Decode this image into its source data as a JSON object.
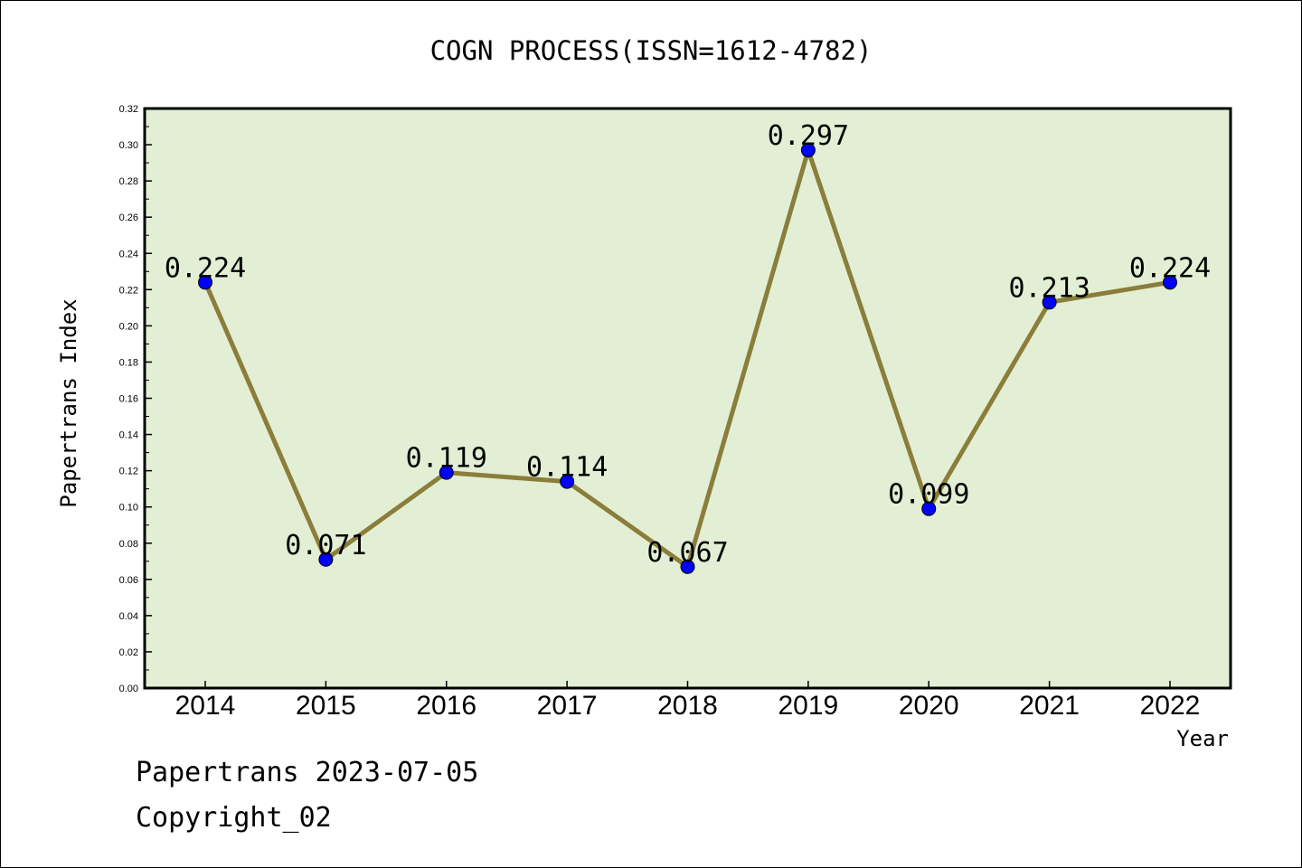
{
  "chart_data": {
    "type": "line",
    "title": "COGN PROCESS(ISSN=1612-4782)",
    "xlabel": "Year",
    "ylabel": "Papertrans Index",
    "categories": [
      "2014",
      "2015",
      "2016",
      "2017",
      "2018",
      "2019",
      "2020",
      "2021",
      "2022"
    ],
    "values": [
      0.224,
      0.071,
      0.119,
      0.114,
      0.067,
      0.297,
      0.099,
      0.213,
      0.224
    ],
    "data_labels": [
      "0.224",
      "0.071",
      "0.119",
      "0.114",
      "0.067",
      "0.297",
      "0.099",
      "0.213",
      "0.224"
    ],
    "ylim": [
      0,
      0.32
    ],
    "yticks": [
      "0.00",
      "0.02",
      "0.04",
      "0.06",
      "0.08",
      "0.10",
      "0.12",
      "0.14",
      "0.16",
      "0.18",
      "0.20",
      "0.22",
      "0.24",
      "0.26",
      "0.28",
      "0.30",
      "0.32"
    ],
    "grid": false,
    "colors": {
      "plot_background": "#e2efd4",
      "line": "#8b7d3a",
      "marker": "#0000ff"
    }
  },
  "footer": {
    "line1": "Papertrans 2023-07-05",
    "line2": "Copyright_02"
  }
}
